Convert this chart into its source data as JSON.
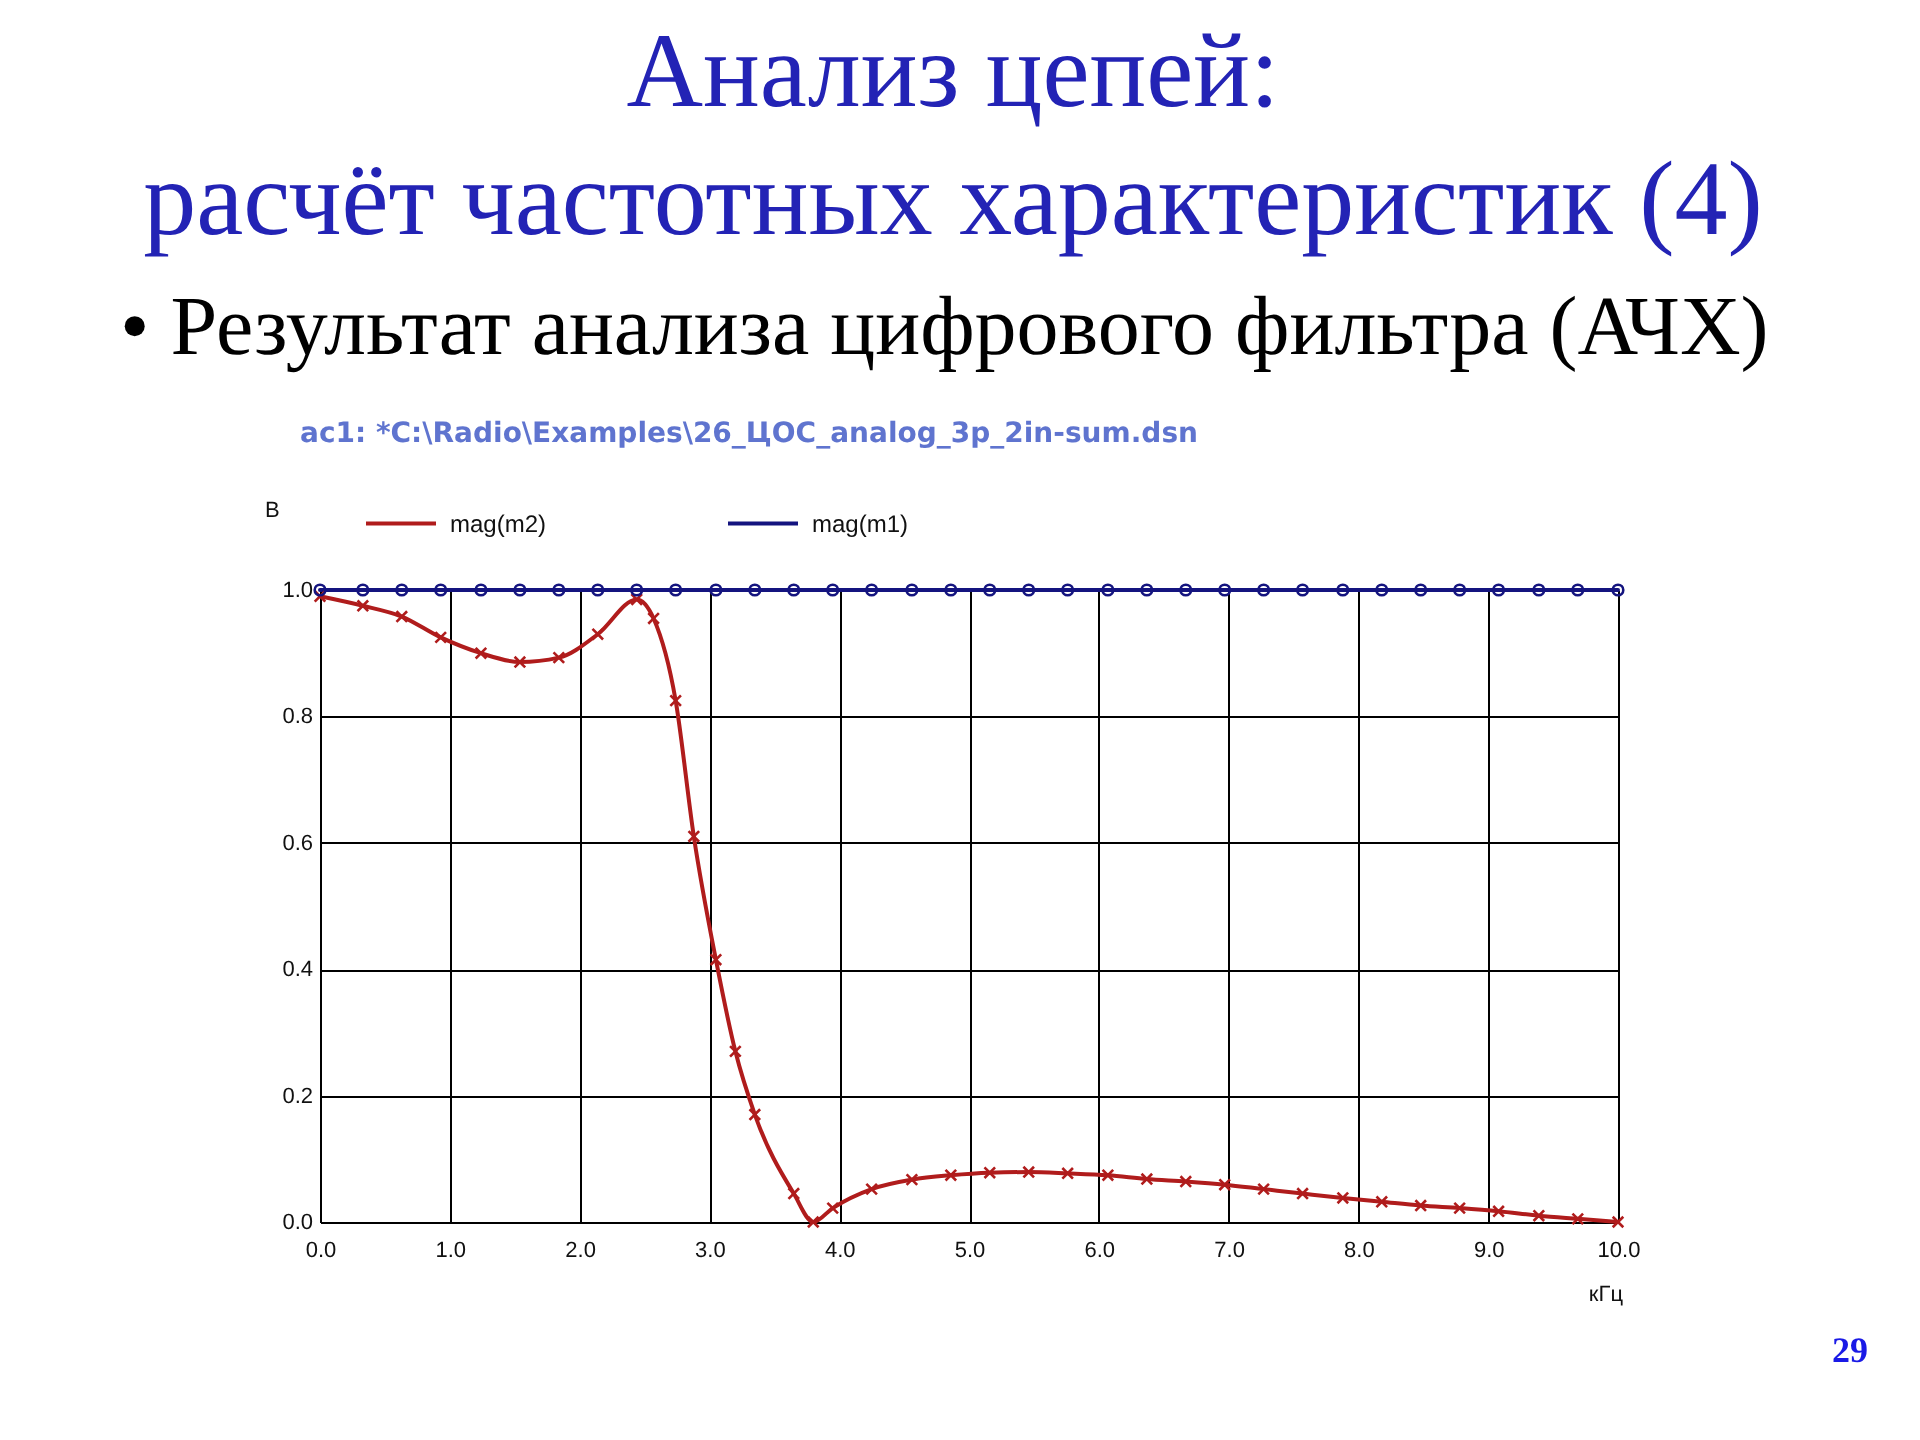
{
  "chart_data": {
    "type": "line",
    "title": "Анализ цепей:\nрасчёт частотных характеристик (4)",
    "subtitle": "• Результат анализа цифрового фильтра (АЧХ)",
    "xlabel": "кГц",
    "ylabel": "В",
    "series": [
      {
        "name": "mag(m2)",
        "color": "#b01c1c",
        "marker": "cross",
        "x": [
          0,
          0.33,
          0.63,
          0.93,
          1.24,
          1.54,
          1.84,
          2.14,
          2.44,
          2.57,
          2.74,
          2.88,
          3.05,
          3.2,
          3.35,
          3.65,
          3.8,
          3.95,
          4.25,
          4.56,
          4.86,
          5.16,
          5.46,
          5.76,
          6.07,
          6.37,
          6.67,
          6.97,
          7.27,
          7.57,
          7.88,
          8.18,
          8.48,
          8.78,
          9.08,
          9.39,
          9.69,
          10
        ],
        "values": [
          0.99,
          0.975,
          0.958,
          0.925,
          0.9,
          0.886,
          0.893,
          0.93,
          0.985,
          0.955,
          0.825,
          0.61,
          0.415,
          0.27,
          0.17,
          0.045,
          0.0,
          0.022,
          0.052,
          0.067,
          0.074,
          0.078,
          0.079,
          0.077,
          0.074,
          0.068,
          0.064,
          0.059,
          0.052,
          0.045,
          0.038,
          0.032,
          0.026,
          0.022,
          0.017,
          0.01,
          0.005,
          0.0
        ]
      },
      {
        "name": "mag(m1)",
        "color": "#14147f",
        "marker": "circle",
        "x": [
          0,
          0.33,
          0.63,
          0.93,
          1.24,
          1.54,
          1.84,
          2.14,
          2.44,
          2.74,
          3.05,
          3.35,
          3.65,
          3.95,
          4.25,
          4.56,
          4.86,
          5.16,
          5.46,
          5.76,
          6.07,
          6.37,
          6.67,
          6.97,
          7.27,
          7.57,
          7.88,
          8.18,
          8.48,
          8.78,
          9.08,
          9.39,
          9.69,
          10
        ],
        "values": [
          1,
          1,
          1,
          1,
          1,
          1,
          1,
          1,
          1,
          1,
          1,
          1,
          1,
          1,
          1,
          1,
          1,
          1,
          1,
          1,
          1,
          1,
          1,
          1,
          1,
          1,
          1,
          1,
          1,
          1,
          1,
          1,
          1,
          1
        ]
      }
    ],
    "xlim": [
      0,
      10
    ],
    "ylim": [
      0,
      1
    ],
    "xticks": [
      {
        "value": 0,
        "label": "0.0"
      },
      {
        "value": 1,
        "label": "1.0"
      },
      {
        "value": 2,
        "label": "2.0"
      },
      {
        "value": 3,
        "label": "3.0"
      },
      {
        "value": 4,
        "label": "4.0"
      },
      {
        "value": 5,
        "label": "5.0"
      },
      {
        "value": 6,
        "label": "6.0"
      },
      {
        "value": 7,
        "label": "7.0"
      },
      {
        "value": 8,
        "label": "8.0"
      },
      {
        "value": 9,
        "label": "9.0"
      },
      {
        "value": 10,
        "label": "10.0"
      }
    ],
    "yticks": [
      {
        "value": 0,
        "label": "0.0"
      },
      0.2,
      0.4,
      0.6,
      0.8,
      {
        "value": 1,
        "label": "1.0"
      }
    ],
    "grid": true,
    "legend": "top left",
    "annotations": [
      "ac1: *C:\\Radio\\Examples\\26_ЦОС_analog_3p_2in-sum.dsn",
      "29"
    ]
  }
}
